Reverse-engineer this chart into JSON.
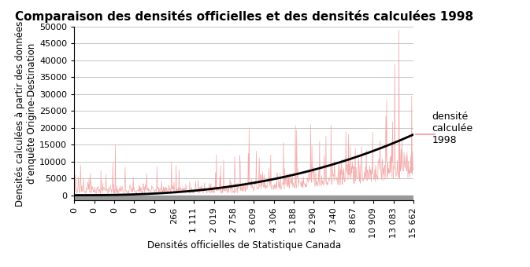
{
  "title": "Comparaison des densités officielles et des densités calculées 1998",
  "xlabel": "Densités officielles de Statistique Canada",
  "ylabel": "Densités calculées à partir des données\nd'enquête Origine-Destination",
  "legend_label": "densité\ncalculée\n1998",
  "xtick_labels": [
    "0",
    "0",
    "0",
    "0",
    "0",
    "266",
    "1 111",
    "2 019",
    "2 758",
    "3 609",
    "4 306",
    "5 188",
    "6 290",
    "7 340",
    "8 867",
    "10 909",
    "13 083",
    "15 662"
  ],
  "ylim": [
    -1500,
    50000
  ],
  "yticks": [
    0,
    5000,
    10000,
    15000,
    20000,
    25000,
    30000,
    35000,
    40000,
    45000,
    50000
  ],
  "pink_color": "#F4AAAA",
  "black_color": "#000000",
  "gray_bar_color": "#999999",
  "n_points": 800,
  "title_fontsize": 11,
  "axis_label_fontsize": 8.5,
  "tick_fontsize": 8,
  "legend_fontsize": 9,
  "background_color": "#ffffff",
  "grid_color": "#bbbbbb"
}
